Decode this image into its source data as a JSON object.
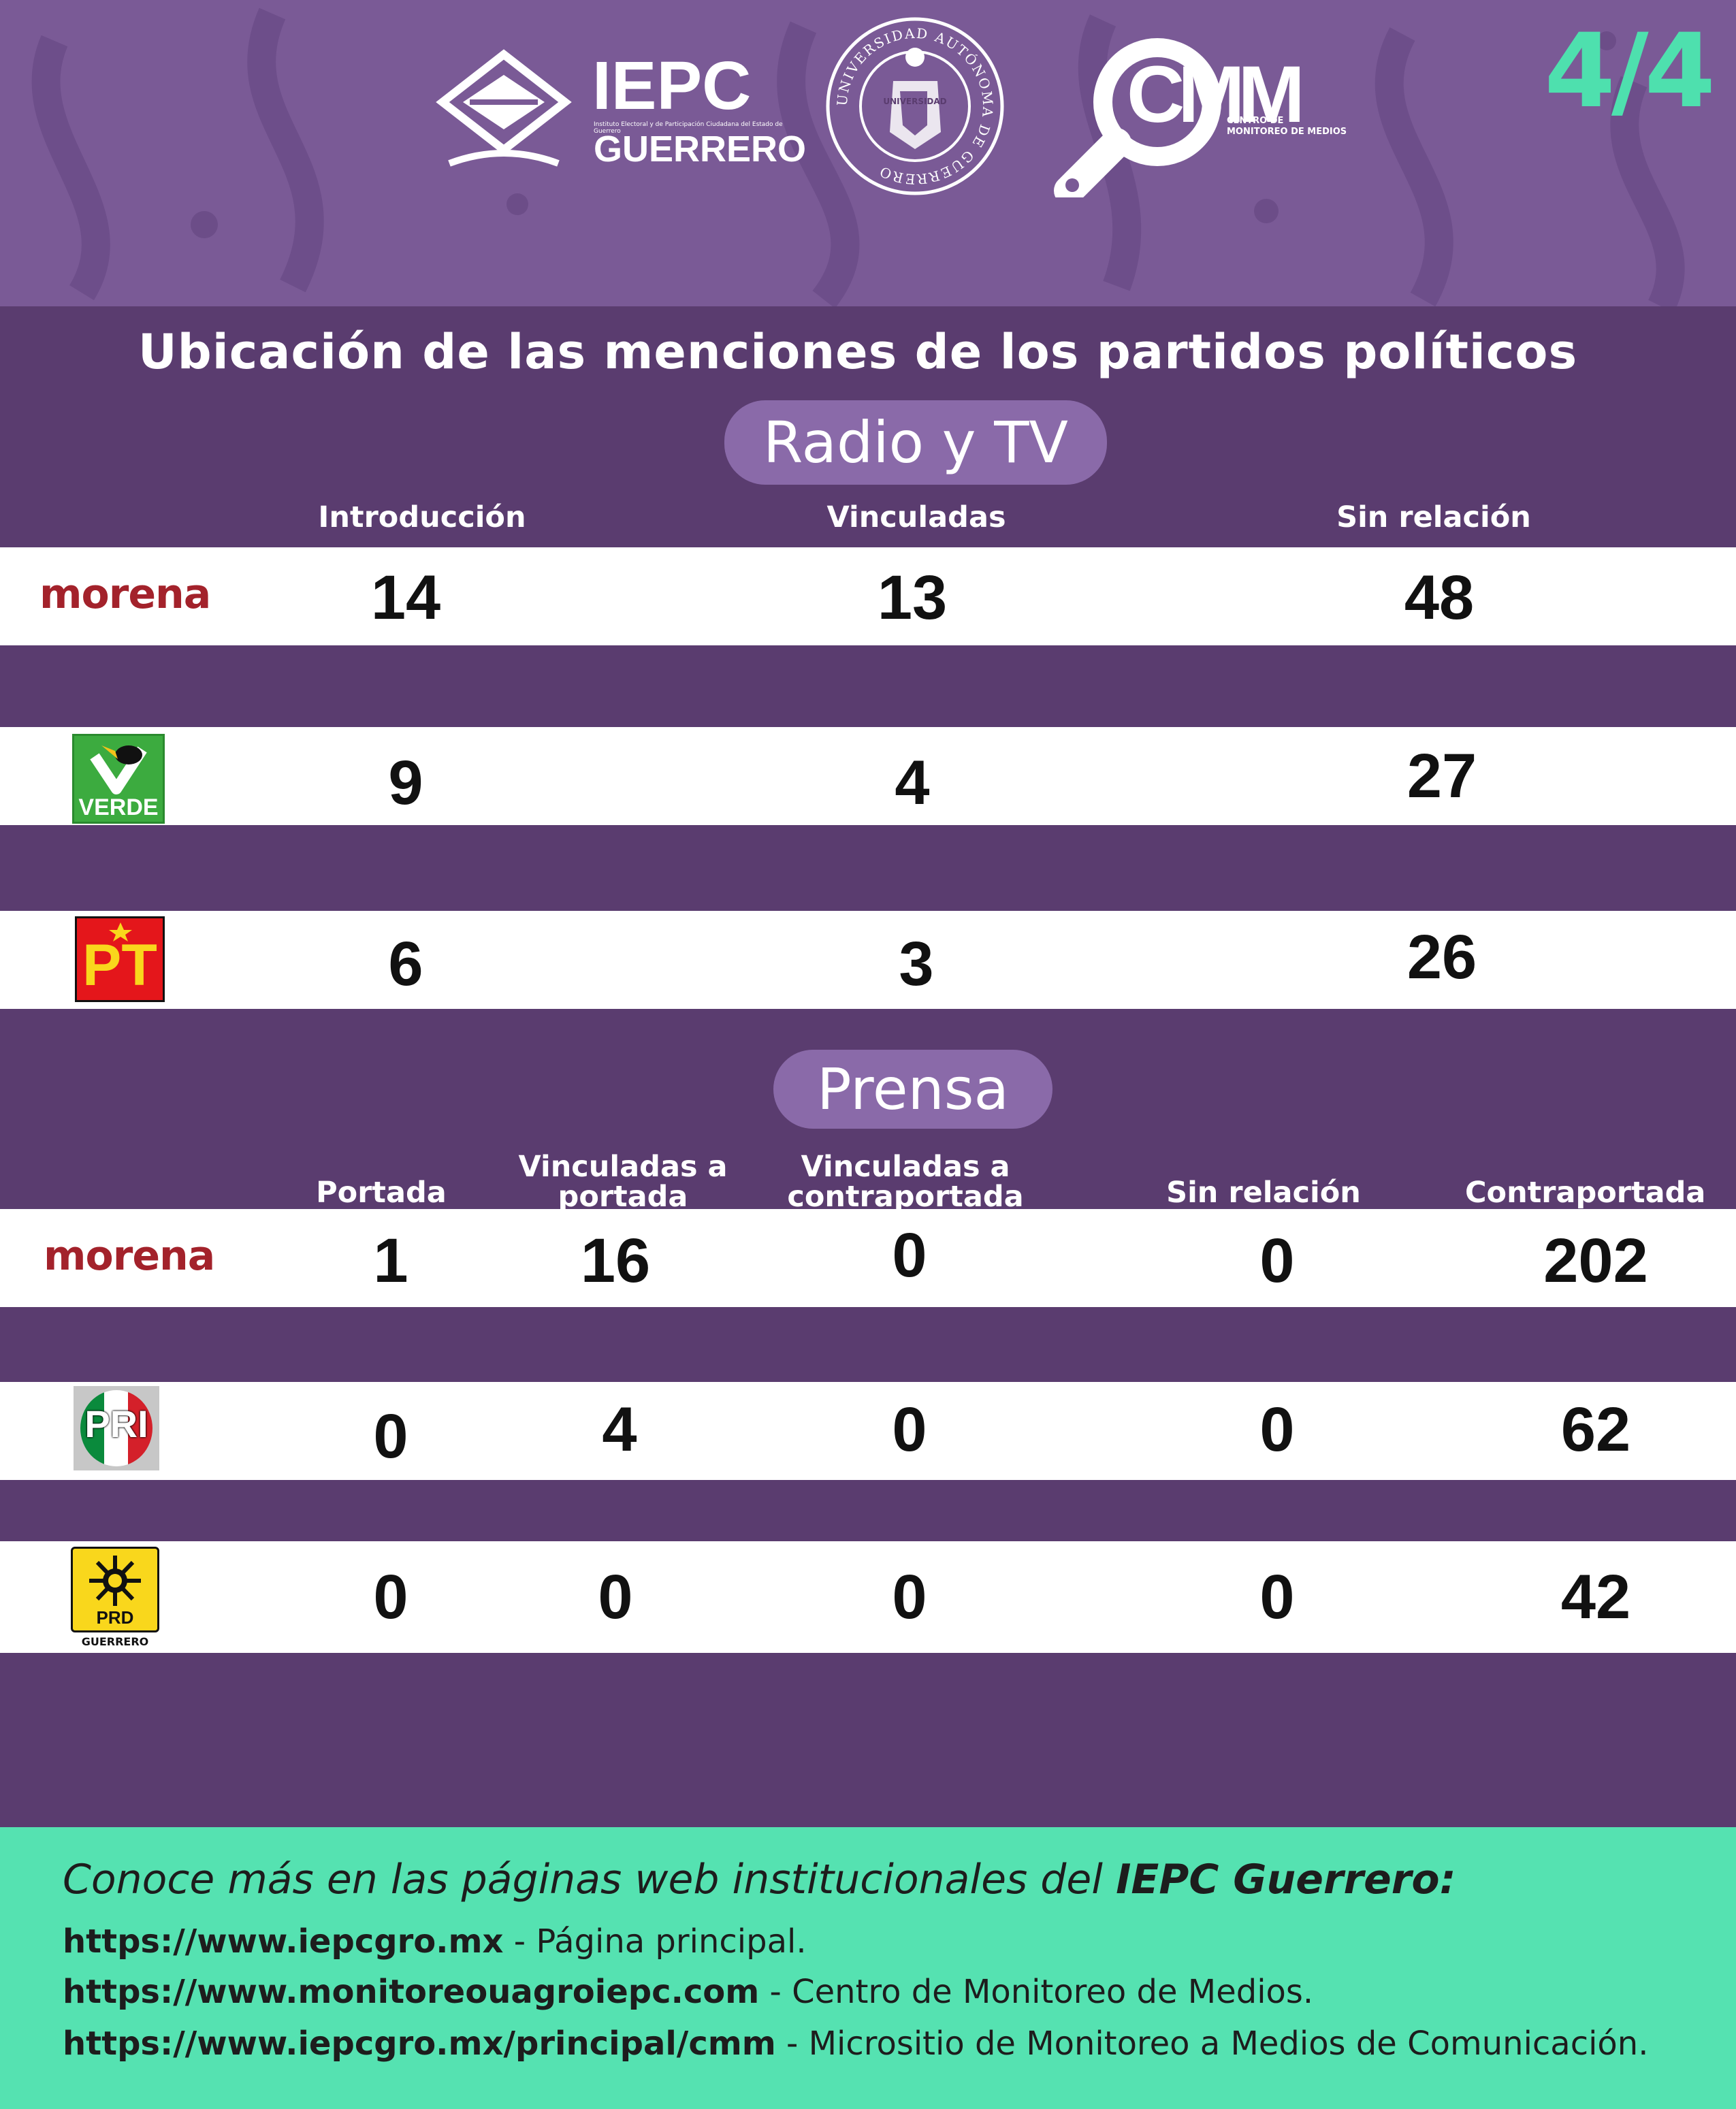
{
  "header": {
    "page_counter": "4/4",
    "logos": {
      "iepc": {
        "name": "IEPC",
        "sub": "GUERRERO",
        "tagline": "Instituto Electoral y de Participación Ciudadana del Estado de Guerrero"
      },
      "uagro": {
        "ring_text": "UNIVERSIDAD AUTÓNOMA DE GUERRERO",
        "inner_text": "UNIVERSIDAD"
      },
      "cmm": {
        "name": "CMM",
        "sub1": "CENTRO DE",
        "sub2": "MONITOREO DE MEDIOS"
      }
    }
  },
  "title": "Ubicación de las menciones de los partidos políticos",
  "radio_tv": {
    "label": "Radio y TV",
    "columns": [
      "Introducción",
      "Vinculadas",
      "Sin relación"
    ],
    "rows": [
      {
        "party": "morena",
        "logo_text": "morena",
        "values": [
          "14",
          "13",
          "48"
        ]
      },
      {
        "party": "verde",
        "logo_text": "VERDE",
        "values": [
          "9",
          "4",
          "27"
        ]
      },
      {
        "party": "pt",
        "logo_text": "PT",
        "values": [
          "6",
          "3",
          "26"
        ]
      }
    ]
  },
  "prensa": {
    "label": "Prensa",
    "columns": [
      "Portada",
      "Vinculadas a portada",
      "Vinculadas a contraportada",
      "Sin relación",
      "Contraportada"
    ],
    "column_lines": [
      [
        "Portada"
      ],
      [
        "Vinculadas a",
        "portada"
      ],
      [
        "Vinculadas a",
        "contraportada"
      ],
      [
        "Sin relación"
      ],
      [
        "Contraportada"
      ]
    ],
    "rows": [
      {
        "party": "morena",
        "logo_text": "morena",
        "values": [
          "1",
          "16",
          "0",
          "0",
          "202"
        ]
      },
      {
        "party": "pri",
        "logo_text": "PRI",
        "values": [
          "0",
          "4",
          "0",
          "0",
          "62"
        ]
      },
      {
        "party": "prd",
        "logo_text": "PRD",
        "logo_sub": "GUERRERO",
        "values": [
          "0",
          "0",
          "0",
          "0",
          "42"
        ]
      }
    ]
  },
  "footer": {
    "intro_text": "Conoce más en las páginas web institucionales del ",
    "intro_bold": "IEPC Guerrero:",
    "links": [
      {
        "url": "https://www.iepcgro.mx",
        "description": " - Página principal."
      },
      {
        "url": "https://www.monitoreouagroiepc.com",
        "description": " - Centro de Monitoreo de Medios."
      },
      {
        "url": "https://www.iepcgro.mx/principal/cmm",
        "description": " - Micrositio de Monitoreo a Medios de Comunicación."
      }
    ]
  },
  "colors": {
    "header_bg": "#7a5a96",
    "body_bg": "#5a3c6f",
    "pill_bg": "#8a6aa9",
    "accent_green": "#4ee0ae",
    "footer_bg": "#55e2b1",
    "morena_red": "#a3222b"
  }
}
